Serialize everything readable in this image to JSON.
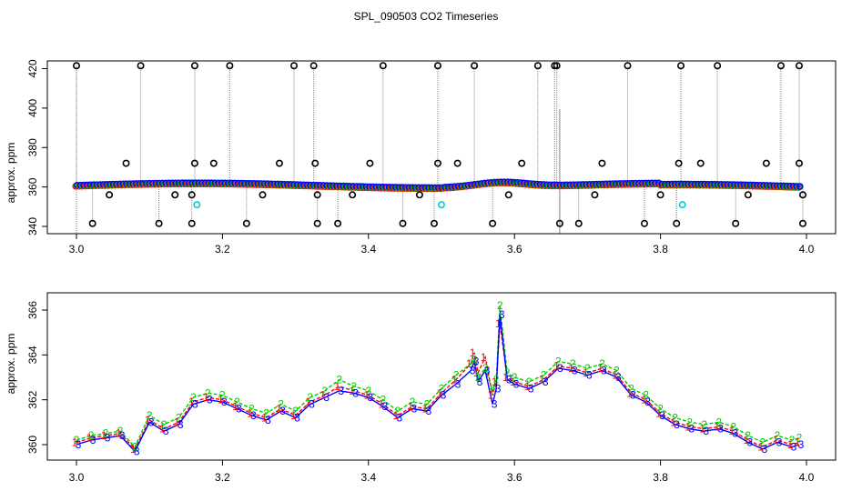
{
  "figure": {
    "title": "SPL_090503  CO2 Timeseries"
  },
  "chart_data": [
    {
      "type": "scatter",
      "panel": "top",
      "xlabel": "",
      "ylabel": "approx. ppm",
      "xlim": [
        3.0,
        4.0
      ],
      "ylim": [
        340,
        422
      ],
      "xticks": [
        3.0,
        3.2,
        3.4,
        3.6,
        3.8,
        4.0
      ],
      "yticks": [
        340,
        360,
        380,
        400,
        420
      ],
      "clip_high": 421.5,
      "clip_low": 341.5,
      "spike_high_x": [
        3.0,
        3.088,
        3.162,
        3.21,
        3.298,
        3.325,
        3.42,
        3.495,
        3.545,
        3.632,
        3.655,
        3.658,
        3.755,
        3.828,
        3.878,
        3.965,
        3.99
      ],
      "spike_low_x": [
        3.022,
        3.113,
        3.158,
        3.233,
        3.33,
        3.358,
        3.447,
        3.49,
        3.57,
        3.662,
        3.688,
        3.778,
        3.822,
        3.903,
        3.995
      ],
      "mid_points": [
        {
          "x": 3.068,
          "y": 372
        },
        {
          "x": 3.162,
          "y": 372
        },
        {
          "x": 3.188,
          "y": 372
        },
        {
          "x": 3.278,
          "y": 372
        },
        {
          "x": 3.327,
          "y": 372
        },
        {
          "x": 3.402,
          "y": 372
        },
        {
          "x": 3.495,
          "y": 372
        },
        {
          "x": 3.522,
          "y": 372
        },
        {
          "x": 3.61,
          "y": 372
        },
        {
          "x": 3.72,
          "y": 372
        },
        {
          "x": 3.825,
          "y": 372
        },
        {
          "x": 3.855,
          "y": 372
        },
        {
          "x": 3.945,
          "y": 372
        },
        {
          "x": 3.99,
          "y": 372
        },
        {
          "x": 3.045,
          "y": 356
        },
        {
          "x": 3.135,
          "y": 356
        },
        {
          "x": 3.158,
          "y": 356
        },
        {
          "x": 3.255,
          "y": 356
        },
        {
          "x": 3.33,
          "y": 356
        },
        {
          "x": 3.378,
          "y": 356
        },
        {
          "x": 3.47,
          "y": 356
        },
        {
          "x": 3.592,
          "y": 356
        },
        {
          "x": 3.71,
          "y": 356
        },
        {
          "x": 3.8,
          "y": 356
        },
        {
          "x": 3.92,
          "y": 356
        },
        {
          "x": 3.995,
          "y": 356
        }
      ],
      "cyan_points": [
        {
          "x": 3.165,
          "y": 351
        },
        {
          "x": 3.5,
          "y": 351
        },
        {
          "x": 3.83,
          "y": 351
        }
      ],
      "series": [
        {
          "name": "1",
          "color": "#ff0000"
        },
        {
          "name": "2",
          "color": "#00cd00"
        },
        {
          "name": "3",
          "color": "#0000ff"
        }
      ]
    },
    {
      "type": "line",
      "panel": "bottom",
      "xlabel": "",
      "ylabel": "approx. ppm",
      "xlim": [
        3.0,
        4.0
      ],
      "ylim": [
        359.4,
        366.6
      ],
      "xticks": [
        3.0,
        3.2,
        3.4,
        3.6,
        3.8,
        4.0
      ],
      "yticks": [
        360,
        362,
        364,
        366
      ],
      "x": [
        3.0,
        3.02,
        3.04,
        3.06,
        3.08,
        3.1,
        3.12,
        3.14,
        3.16,
        3.18,
        3.2,
        3.22,
        3.24,
        3.26,
        3.28,
        3.3,
        3.32,
        3.34,
        3.36,
        3.38,
        3.4,
        3.42,
        3.44,
        3.46,
        3.48,
        3.5,
        3.52,
        3.54,
        3.545,
        3.55,
        3.56,
        3.57,
        3.575,
        3.58,
        3.59,
        3.6,
        3.62,
        3.64,
        3.66,
        3.68,
        3.7,
        3.72,
        3.74,
        3.76,
        3.78,
        3.8,
        3.82,
        3.84,
        3.86,
        3.88,
        3.9,
        3.92,
        3.94,
        3.96,
        3.98,
        3.99
      ],
      "series": [
        {
          "name": "1",
          "color": "#ff0000",
          "marker": "1",
          "values": [
            360.1,
            360.3,
            360.4,
            360.5,
            359.8,
            361.1,
            360.7,
            361.0,
            361.9,
            362.1,
            362.0,
            361.7,
            361.4,
            361.2,
            361.6,
            361.3,
            361.9,
            362.2,
            362.6,
            362.4,
            362.2,
            361.8,
            361.3,
            361.7,
            361.6,
            362.3,
            362.9,
            363.6,
            364.1,
            363.2,
            363.9,
            362.2,
            362.8,
            365.4,
            363.0,
            362.8,
            362.6,
            362.9,
            363.5,
            363.4,
            363.2,
            363.4,
            363.1,
            362.3,
            362.0,
            361.4,
            361.0,
            360.8,
            360.7,
            360.8,
            360.6,
            360.2,
            359.9,
            360.2,
            360.0,
            360.1
          ]
        },
        {
          "name": "2",
          "color": "#00cd00",
          "marker": "2",
          "values": [
            360.2,
            360.4,
            360.5,
            360.6,
            359.9,
            361.3,
            360.9,
            361.2,
            362.1,
            362.3,
            362.2,
            361.9,
            361.6,
            361.4,
            361.8,
            361.5,
            362.1,
            362.4,
            362.9,
            362.6,
            362.4,
            362.0,
            361.5,
            361.9,
            361.8,
            362.5,
            363.1,
            363.6,
            363.8,
            363.0,
            363.4,
            362.4,
            362.9,
            366.2,
            363.2,
            363.0,
            362.8,
            363.1,
            363.7,
            363.6,
            363.4,
            363.6,
            363.3,
            362.5,
            362.2,
            361.6,
            361.2,
            361.0,
            360.9,
            361.0,
            360.8,
            360.4,
            360.1,
            360.4,
            360.2,
            360.3
          ]
        },
        {
          "name": "3",
          "color": "#0000ff",
          "marker": "3",
          "values": [
            360.0,
            360.2,
            360.3,
            360.4,
            359.7,
            361.0,
            360.6,
            360.9,
            361.8,
            362.0,
            361.9,
            361.6,
            361.3,
            361.1,
            361.5,
            361.2,
            361.8,
            362.1,
            362.4,
            362.3,
            362.1,
            361.7,
            361.2,
            361.6,
            361.5,
            362.2,
            362.7,
            363.3,
            363.7,
            362.8,
            363.3,
            361.8,
            362.5,
            365.8,
            362.9,
            362.7,
            362.5,
            362.8,
            363.4,
            363.3,
            363.1,
            363.3,
            363.0,
            362.2,
            361.9,
            361.3,
            360.9,
            360.7,
            360.6,
            360.7,
            360.5,
            360.1,
            359.8,
            360.1,
            359.9,
            360.0
          ]
        }
      ]
    }
  ]
}
